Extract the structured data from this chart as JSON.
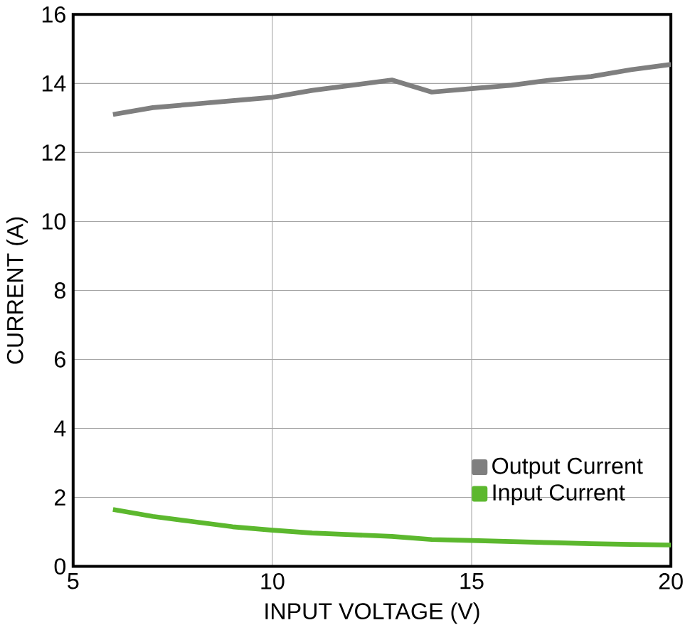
{
  "chart_data": {
    "type": "line",
    "xlabel": "INPUT VOLTAGE (V)",
    "ylabel": "CURRENT (A)",
    "xlim": [
      5,
      20
    ],
    "xticks": [
      5,
      10,
      15,
      20
    ],
    "ylim": [
      0,
      16
    ],
    "yticks": [
      0,
      2,
      4,
      6,
      8,
      10,
      12,
      14,
      16
    ],
    "grid": true,
    "legend": "bottom right",
    "series": [
      {
        "name": "Output Current",
        "color": "#7f7f7f",
        "x": [
          6,
          7,
          8,
          9,
          10,
          11,
          12,
          13,
          14,
          15,
          16,
          17,
          18,
          19,
          20
        ],
        "values": [
          13.1,
          13.3,
          13.4,
          13.5,
          13.6,
          13.8,
          13.95,
          14.1,
          13.75,
          13.85,
          13.95,
          14.1,
          14.2,
          14.4,
          14.55
        ]
      },
      {
        "name": "Input Current",
        "color": "#5cb82e",
        "x": [
          6,
          7,
          8,
          9,
          10,
          11,
          12,
          13,
          14,
          15,
          16,
          17,
          18,
          19,
          20
        ],
        "values": [
          1.65,
          1.45,
          1.3,
          1.15,
          1.05,
          0.97,
          0.92,
          0.87,
          0.78,
          0.75,
          0.72,
          0.69,
          0.66,
          0.64,
          0.62
        ]
      }
    ]
  }
}
